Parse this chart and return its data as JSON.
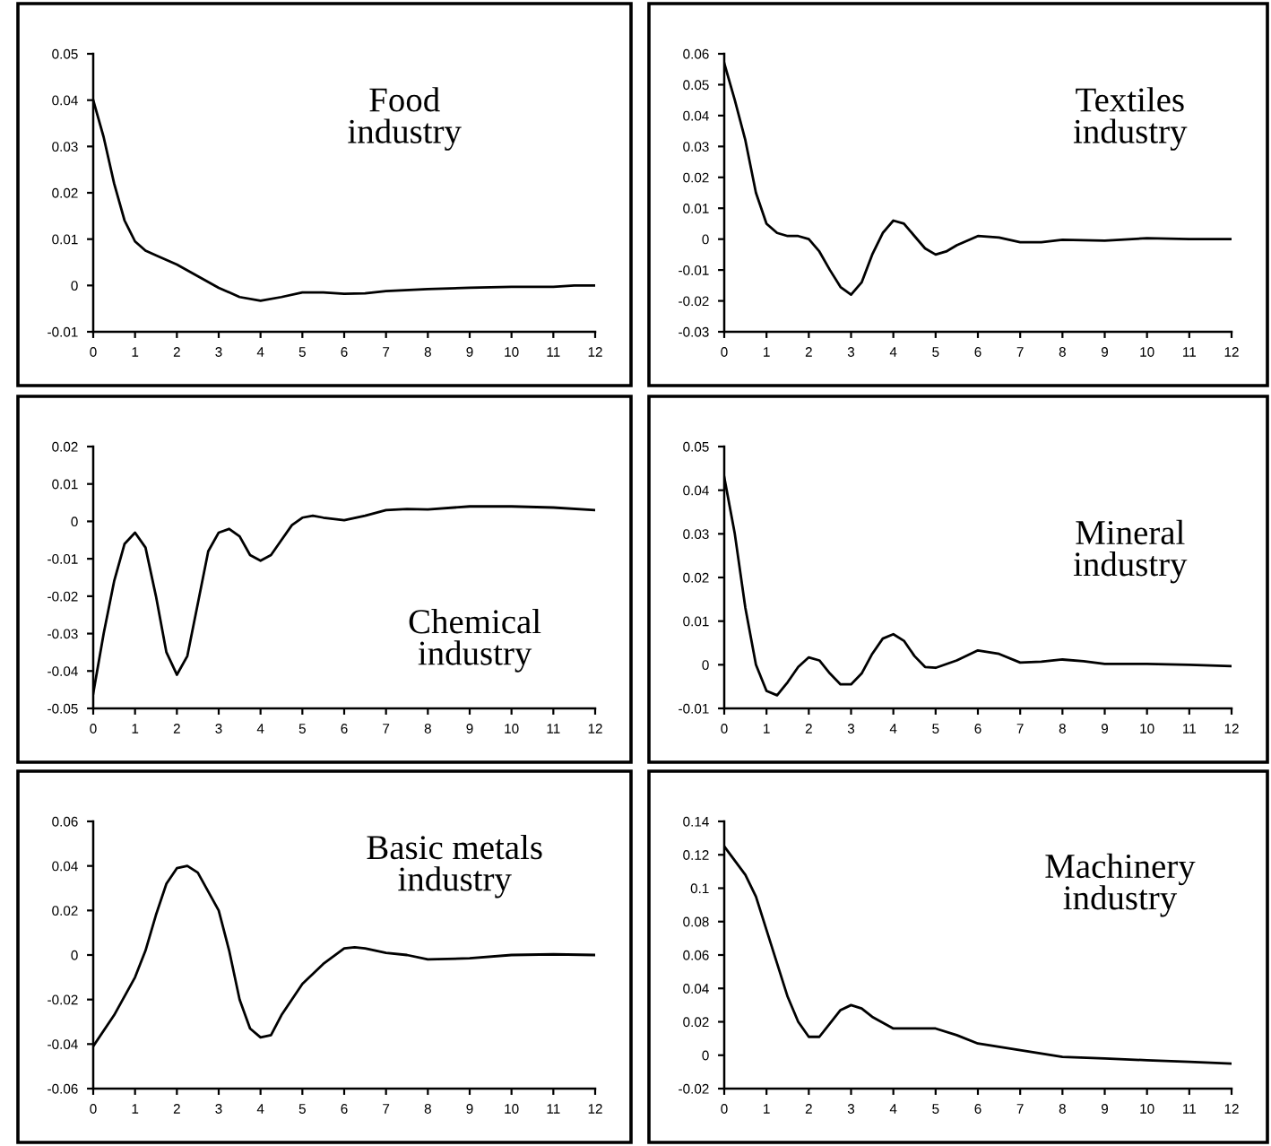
{
  "chart_data": [
    {
      "type": "line",
      "title": "Food\nindustry",
      "color": "#000000",
      "xlim": [
        0,
        12
      ],
      "xticks": [
        0,
        1,
        2,
        3,
        4,
        5,
        6,
        7,
        8,
        9,
        10,
        11,
        12
      ],
      "ylim": [
        -0.01,
        0.05
      ],
      "yticks": [
        -0.01,
        0,
        0.01,
        0.02,
        0.03,
        0.04,
        0.05
      ],
      "x": [
        0,
        0.25,
        0.5,
        0.75,
        1,
        1.25,
        1.5,
        2,
        2.5,
        3,
        3.5,
        4,
        4.5,
        5,
        5.5,
        6,
        6.5,
        7,
        8,
        9,
        10,
        11,
        11.5,
        12
      ],
      "values": [
        0.04,
        0.032,
        0.022,
        0.014,
        0.0095,
        0.0075,
        0.0065,
        0.0045,
        0.002,
        -0.0005,
        -0.0025,
        -0.0033,
        -0.0025,
        -0.0015,
        -0.0015,
        -0.0018,
        -0.0017,
        -0.0012,
        -0.0008,
        -0.0005,
        -0.0003,
        -0.0003,
        0,
        0
      ]
    },
    {
      "type": "line",
      "title": "Textiles\nindustry",
      "color": "#000000",
      "xlim": [
        0,
        12
      ],
      "xticks": [
        0,
        1,
        2,
        3,
        4,
        5,
        6,
        7,
        8,
        9,
        10,
        11,
        12
      ],
      "ylim": [
        -0.03,
        0.06
      ],
      "yticks": [
        -0.03,
        -0.02,
        -0.01,
        0,
        0.01,
        0.02,
        0.03,
        0.04,
        0.05,
        0.06
      ],
      "x": [
        0,
        0.25,
        0.5,
        0.75,
        1,
        1.25,
        1.5,
        1.75,
        2,
        2.25,
        2.5,
        2.75,
        3,
        3.25,
        3.5,
        3.75,
        4,
        4.25,
        4.5,
        4.75,
        5,
        5.25,
        5.5,
        6,
        6.5,
        7,
        7.5,
        8,
        9,
        10,
        11,
        12
      ],
      "values": [
        0.057,
        0.045,
        0.032,
        0.015,
        0.005,
        0.002,
        0.001,
        0.001,
        0,
        -0.004,
        -0.01,
        -0.0155,
        -0.018,
        -0.014,
        -0.005,
        0.002,
        0.006,
        0.005,
        0.001,
        -0.003,
        -0.005,
        -0.004,
        -0.002,
        0.001,
        0.0005,
        -0.001,
        -0.001,
        -0.0002,
        -0.0005,
        0.0003,
        0,
        0
      ]
    },
    {
      "type": "line",
      "title": "Chemical\nindustry",
      "color": "#000000",
      "xlim": [
        0,
        12
      ],
      "xticks": [
        0,
        1,
        2,
        3,
        4,
        5,
        6,
        7,
        8,
        9,
        10,
        11,
        12
      ],
      "ylim": [
        -0.05,
        0.02
      ],
      "yticks": [
        -0.05,
        -0.04,
        -0.03,
        -0.02,
        -0.01,
        0,
        0.01,
        0.02
      ],
      "x": [
        0,
        0.25,
        0.5,
        0.75,
        1,
        1.25,
        1.5,
        1.75,
        2,
        2.25,
        2.5,
        2.75,
        3,
        3.25,
        3.5,
        3.75,
        4,
        4.25,
        4.5,
        4.75,
        5,
        5.25,
        5.5,
        6,
        6.5,
        7,
        7.5,
        8,
        9,
        10,
        11,
        12
      ],
      "values": [
        -0.046,
        -0.03,
        -0.016,
        -0.006,
        -0.003,
        -0.007,
        -0.02,
        -0.035,
        -0.041,
        -0.036,
        -0.022,
        -0.008,
        -0.003,
        -0.002,
        -0.004,
        -0.009,
        -0.0105,
        -0.009,
        -0.005,
        -0.001,
        0.001,
        0.0015,
        0.001,
        0.0003,
        0.0015,
        0.003,
        0.0033,
        0.0032,
        0.004,
        0.004,
        0.0037,
        0.003
      ]
    },
    {
      "type": "line",
      "title": "Mineral\nindustry",
      "color": "#000000",
      "xlim": [
        0,
        12
      ],
      "xticks": [
        0,
        1,
        2,
        3,
        4,
        5,
        6,
        7,
        8,
        9,
        10,
        11,
        12
      ],
      "ylim": [
        -0.01,
        0.05
      ],
      "yticks": [
        -0.01,
        0,
        0.01,
        0.02,
        0.03,
        0.04,
        0.05
      ],
      "x": [
        0,
        0.25,
        0.5,
        0.75,
        1,
        1.25,
        1.5,
        1.75,
        2,
        2.25,
        2.5,
        2.75,
        3,
        3.25,
        3.5,
        3.75,
        4,
        4.25,
        4.5,
        4.75,
        5,
        5.5,
        6,
        6.5,
        7,
        7.5,
        8,
        8.5,
        9,
        10,
        11,
        12
      ],
      "values": [
        0.043,
        0.03,
        0.013,
        0.0,
        -0.006,
        -0.007,
        -0.004,
        -0.0005,
        0.0017,
        0.001,
        -0.002,
        -0.0045,
        -0.0045,
        -0.002,
        0.0025,
        0.006,
        0.007,
        0.0055,
        0.002,
        -0.0005,
        -0.0007,
        0.001,
        0.0033,
        0.0025,
        0.0005,
        0.0007,
        0.0012,
        0.0008,
        0.0002,
        0.0002,
        0,
        -0.0003
      ]
    },
    {
      "type": "line",
      "title": "Basic metals\nindustry",
      "color": "#000000",
      "xlim": [
        0,
        12
      ],
      "xticks": [
        0,
        1,
        2,
        3,
        4,
        5,
        6,
        7,
        8,
        9,
        10,
        11,
        12
      ],
      "ylim": [
        -0.06,
        0.06
      ],
      "yticks": [
        -0.06,
        -0.04,
        -0.02,
        0,
        0.02,
        0.04,
        0.06
      ],
      "x": [
        0,
        0.5,
        1,
        1.25,
        1.5,
        1.75,
        2,
        2.25,
        2.5,
        3,
        3.25,
        3.5,
        3.75,
        4,
        4.25,
        4.5,
        5,
        5.5,
        6,
        6.25,
        6.5,
        7,
        7.5,
        8,
        9,
        10,
        11,
        12
      ],
      "values": [
        -0.041,
        -0.027,
        -0.01,
        0.002,
        0.018,
        0.032,
        0.039,
        0.04,
        0.037,
        0.02,
        0.002,
        -0.02,
        -0.033,
        -0.037,
        -0.036,
        -0.027,
        -0.013,
        -0.004,
        0.003,
        0.0035,
        0.003,
        0.001,
        0,
        -0.002,
        -0.0015,
        0,
        0.0003,
        0
      ]
    },
    {
      "type": "line",
      "title": "Machinery\nindustry",
      "color": "#000000",
      "xlim": [
        0,
        12
      ],
      "xticks": [
        0,
        1,
        2,
        3,
        4,
        5,
        6,
        7,
        8,
        9,
        10,
        11,
        12
      ],
      "ylim": [
        -0.02,
        0.14
      ],
      "yticks": [
        -0.02,
        0,
        0.02,
        0.04,
        0.06,
        0.08,
        0.1,
        0.12,
        0.14
      ],
      "x": [
        0,
        0.5,
        0.75,
        1,
        1.25,
        1.5,
        1.75,
        2,
        2.25,
        2.5,
        2.75,
        3,
        3.25,
        3.5,
        4,
        4.5,
        5,
        5.5,
        6,
        7,
        8,
        9,
        10,
        11,
        12
      ],
      "values": [
        0.125,
        0.108,
        0.095,
        0.075,
        0.055,
        0.035,
        0.02,
        0.011,
        0.011,
        0.019,
        0.027,
        0.03,
        0.028,
        0.023,
        0.016,
        0.016,
        0.016,
        0.012,
        0.007,
        0.003,
        -0.001,
        -0.002,
        -0.003,
        -0.004,
        -0.005
      ]
    }
  ]
}
